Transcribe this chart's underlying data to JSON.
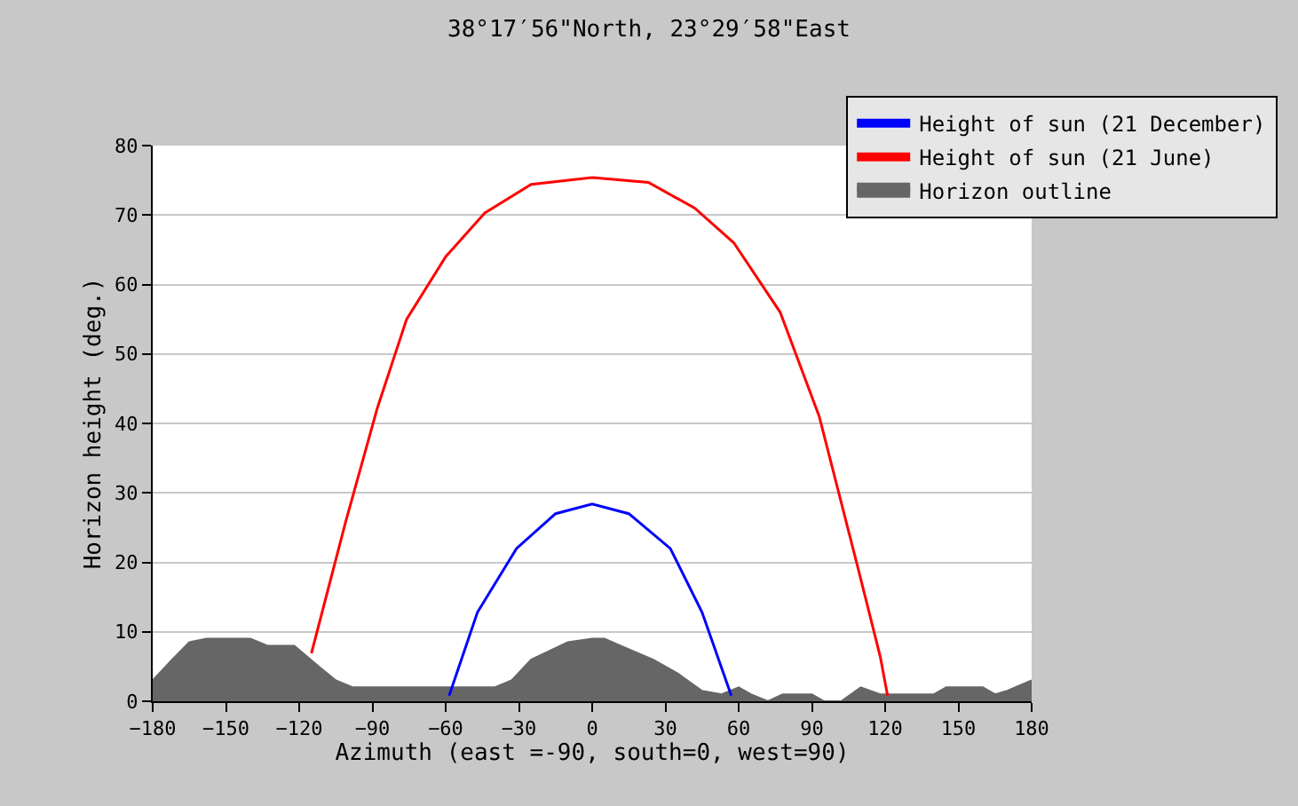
{
  "chart_data": {
    "type": "line",
    "title": "38°17′56\"North, 23°29′58\"East",
    "xlabel": "Azimuth (east =-90, south=0, west=90)",
    "ylabel": "Horizon height (deg.)",
    "xlim": [
      -180,
      180
    ],
    "xticks": [
      -180,
      -150,
      -120,
      -90,
      -60,
      -30,
      0,
      30,
      60,
      90,
      120,
      150,
      180
    ],
    "ylim": [
      0,
      80
    ],
    "yticks": [
      0,
      10,
      20,
      30,
      40,
      50,
      60,
      70,
      80
    ],
    "grid": "y",
    "legend": "top right",
    "series": [
      {
        "name": "Height of sun (21 December)",
        "color": "#0000ff",
        "x": [
          -58.6,
          -47,
          -31,
          -15,
          0,
          15,
          32,
          45,
          57
        ],
        "values": [
          0.8,
          12.8,
          22,
          27,
          28.4,
          27,
          22,
          12.8,
          0.8
        ]
      },
      {
        "name": "Height of sun (21 June)",
        "color": "#ff0000",
        "x": [
          -115,
          -101,
          -88,
          -76,
          -60,
          -44,
          -25,
          0,
          23,
          42,
          58,
          77,
          93,
          109,
          118,
          121
        ],
        "values": [
          6.9,
          25.8,
          42.2,
          55,
          64,
          70.3,
          74.4,
          75.4,
          74.7,
          71,
          66,
          56,
          41,
          19,
          6.4,
          0.8
        ]
      },
      {
        "name": "Horizon outline",
        "color": "#666666",
        "type": "area",
        "x": [
          -180,
          -172,
          -165,
          -158,
          -140,
          -133,
          -122,
          -112,
          -105,
          -98,
          -60,
          -40,
          -33,
          -25,
          -10,
          0,
          5,
          15,
          25,
          35,
          45,
          53,
          60,
          65,
          72,
          78,
          90,
          95,
          102,
          110,
          118,
          125,
          140,
          145,
          160,
          165,
          170,
          180
        ],
        "values": [
          3,
          6,
          8.5,
          9,
          9,
          8,
          8,
          5,
          3,
          2,
          2,
          2,
          3,
          6,
          8.5,
          9,
          9,
          7.5,
          6,
          4,
          1.5,
          1,
          2,
          1,
          0,
          1,
          1,
          0,
          0,
          2,
          1,
          1,
          1,
          2,
          2,
          1,
          1.5,
          3
        ]
      }
    ]
  }
}
